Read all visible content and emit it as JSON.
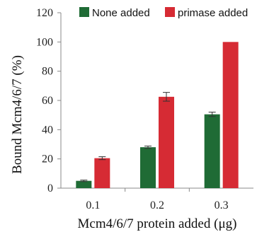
{
  "chart_data": {
    "type": "bar",
    "categories": [
      "0.1",
      "0.2",
      "0.3"
    ],
    "series": [
      {
        "name": "None added",
        "color": "#1f6b35",
        "values": [
          5,
          28,
          50.5
        ],
        "errors": [
          0.5,
          0.8,
          1.5
        ]
      },
      {
        "name": "primase added",
        "color": "#d62b34",
        "values": [
          20.5,
          62.5,
          100
        ],
        "errors": [
          1.0,
          3.0,
          0
        ]
      }
    ],
    "title": "",
    "xlabel": "Mcm4/6/7 protein added (μg)",
    "ylabel": "Bound Mcm4/6/7 (%)",
    "ylim": [
      0,
      120
    ],
    "yticks": [
      "0",
      "20",
      "40",
      "60",
      "80",
      "100",
      "120"
    ],
    "grid": false,
    "legend_position": "top-right"
  }
}
